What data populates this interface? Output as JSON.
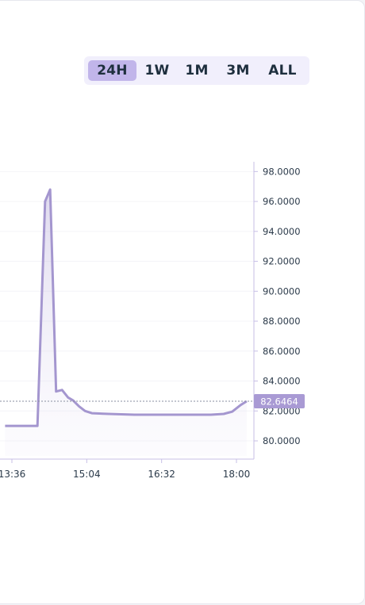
{
  "ranges": {
    "items": [
      "24H",
      "1W",
      "1M",
      "3M",
      "ALL"
    ],
    "active": "24H"
  },
  "chart_data": {
    "type": "area",
    "x_ticks": [
      "13:36",
      "15:04",
      "16:32",
      "18:00"
    ],
    "y_ticks": [
      "98.0000",
      "96.0000",
      "94.0000",
      "92.0000",
      "90.0000",
      "88.0000",
      "86.0000",
      "84.0000",
      "82.0000",
      "80.0000"
    ],
    "ylim": [
      79.0,
      98.5
    ],
    "current_value": 82.6464,
    "current_label": "82.6464",
    "series": [
      {
        "points": [
          [
            "13:28",
            81.0
          ],
          [
            "13:36",
            81.0
          ],
          [
            "14:06",
            81.0
          ],
          [
            "14:15",
            96.0
          ],
          [
            "14:21",
            96.8
          ],
          [
            "14:28",
            83.3
          ],
          [
            "14:35",
            83.4
          ],
          [
            "14:42",
            82.9
          ],
          [
            "14:48",
            82.7
          ],
          [
            "14:55",
            82.3
          ],
          [
            "15:02",
            82.0
          ],
          [
            "15:10",
            81.85
          ],
          [
            "15:30",
            81.8
          ],
          [
            "16:00",
            81.75
          ],
          [
            "16:30",
            81.75
          ],
          [
            "17:00",
            81.75
          ],
          [
            "17:30",
            81.75
          ],
          [
            "17:45",
            81.8
          ],
          [
            "17:55",
            81.95
          ],
          [
            "18:05",
            82.4
          ],
          [
            "18:12",
            82.65
          ]
        ]
      }
    ],
    "colors": {
      "line": "#a496cf",
      "fill": "#ece8f8",
      "badge": "#a99ad4",
      "axis": "#c7bfe6"
    }
  }
}
